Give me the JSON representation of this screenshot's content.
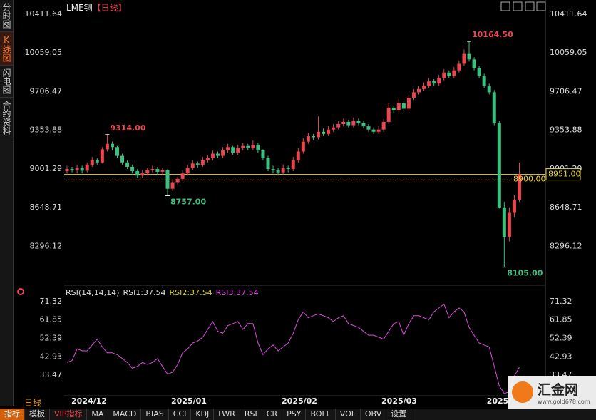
{
  "header": {
    "title": "LME铜",
    "period": "【日线】"
  },
  "sidebar": [
    "分时图",
    "K线图",
    "闪电图",
    "合约资料"
  ],
  "chart_data": [
    {
      "type": "candlestick",
      "ohlc": [
        [
          8980,
          9030,
          8960,
          9000
        ],
        [
          9000,
          9020,
          8970,
          8990
        ],
        [
          8990,
          9040,
          8960,
          9010
        ],
        [
          9010,
          9030,
          8960,
          8985
        ],
        [
          8985,
          9060,
          8970,
          9040
        ],
        [
          9040,
          9110,
          9020,
          9080
        ],
        [
          9080,
          9100,
          9040,
          9060
        ],
        [
          9060,
          9200,
          9050,
          9180
        ],
        [
          9180,
          9314,
          9160,
          9230
        ],
        [
          9230,
          9250,
          9170,
          9200
        ],
        [
          9200,
          9210,
          9100,
          9120
        ],
        [
          9120,
          9140,
          9040,
          9060
        ],
        [
          9060,
          9080,
          9000,
          9020
        ],
        [
          9020,
          9040,
          8960,
          8980
        ],
        [
          8980,
          9000,
          8920,
          8940
        ],
        [
          8940,
          8990,
          8920,
          8960
        ],
        [
          8960,
          9010,
          8940,
          8990
        ],
        [
          8990,
          9030,
          8970,
          9000
        ],
        [
          9000,
          9020,
          8950,
          8975
        ],
        [
          8975,
          9010,
          8950,
          8990
        ],
        [
          8990,
          9000,
          8757,
          8820
        ],
        [
          8820,
          8900,
          8800,
          8880
        ],
        [
          8880,
          8930,
          8860,
          8910
        ],
        [
          8910,
          8990,
          8890,
          8960
        ],
        [
          8960,
          9040,
          8940,
          9010
        ],
        [
          9010,
          9080,
          8990,
          9050
        ],
        [
          9050,
          9070,
          9010,
          9040
        ],
        [
          9040,
          9110,
          9020,
          9080
        ],
        [
          9080,
          9130,
          9060,
          9100
        ],
        [
          9100,
          9170,
          9080,
          9140
        ],
        [
          9140,
          9160,
          9100,
          9120
        ],
        [
          9120,
          9200,
          9100,
          9170
        ],
        [
          9170,
          9230,
          9150,
          9200
        ],
        [
          9200,
          9210,
          9130,
          9150
        ],
        [
          9150,
          9220,
          9130,
          9190
        ],
        [
          9190,
          9240,
          9170,
          9210
        ],
        [
          9210,
          9230,
          9170,
          9190
        ],
        [
          9190,
          9260,
          9170,
          9220
        ],
        [
          9220,
          9240,
          9150,
          9170
        ],
        [
          9170,
          9180,
          9080,
          9100
        ],
        [
          9100,
          9120,
          8980,
          9000
        ],
        [
          9000,
          9030,
          8960,
          8990
        ],
        [
          8990,
          9010,
          8940,
          8970
        ],
        [
          8970,
          9040,
          8950,
          9010
        ],
        [
          9010,
          9030,
          8970,
          9000
        ],
        [
          9000,
          9110,
          8980,
          9080
        ],
        [
          9080,
          9190,
          9060,
          9160
        ],
        [
          9160,
          9280,
          9140,
          9250
        ],
        [
          9250,
          9330,
          9230,
          9300
        ],
        [
          9300,
          9320,
          9260,
          9290
        ],
        [
          9290,
          9480,
          9270,
          9340
        ],
        [
          9340,
          9370,
          9300,
          9320
        ],
        [
          9320,
          9390,
          9300,
          9360
        ],
        [
          9360,
          9410,
          9340,
          9380
        ],
        [
          9380,
          9440,
          9360,
          9410
        ],
        [
          9410,
          9460,
          9390,
          9430
        ],
        [
          9430,
          9450,
          9380,
          9400
        ],
        [
          9400,
          9470,
          9380,
          9440
        ],
        [
          9440,
          9460,
          9400,
          9420
        ],
        [
          9420,
          9440,
          9370,
          9390
        ],
        [
          9390,
          9410,
          9340,
          9360
        ],
        [
          9360,
          9380,
          9320,
          9340
        ],
        [
          9340,
          9390,
          9320,
          9360
        ],
        [
          9360,
          9460,
          9340,
          9430
        ],
        [
          9430,
          9600,
          9410,
          9560
        ],
        [
          9560,
          9580,
          9510,
          9540
        ],
        [
          9540,
          9640,
          9520,
          9600
        ],
        [
          9600,
          9620,
          9530,
          9550
        ],
        [
          9550,
          9680,
          9530,
          9650
        ],
        [
          9650,
          9730,
          9630,
          9700
        ],
        [
          9700,
          9760,
          9680,
          9730
        ],
        [
          9730,
          9790,
          9710,
          9760
        ],
        [
          9760,
          9830,
          9740,
          9800
        ],
        [
          9800,
          9820,
          9760,
          9780
        ],
        [
          9780,
          9860,
          9760,
          9830
        ],
        [
          9830,
          9910,
          9810,
          9880
        ],
        [
          9880,
          9900,
          9830,
          9850
        ],
        [
          9850,
          9930,
          9830,
          9900
        ],
        [
          9900,
          9990,
          9880,
          9960
        ],
        [
          9960,
          10090,
          9940,
          10050
        ],
        [
          10050,
          10164.5,
          9980,
          10000
        ],
        [
          10000,
          10020,
          9900,
          9920
        ],
        [
          9920,
          9940,
          9830,
          9850
        ],
        [
          9850,
          9870,
          9740,
          9760
        ],
        [
          9760,
          9780,
          9680,
          9700
        ],
        [
          9700,
          9720,
          9400,
          9420
        ],
        [
          9420,
          9440,
          8640,
          8650
        ],
        [
          8650,
          8700,
          8105,
          8380
        ],
        [
          8380,
          8650,
          8340,
          8600
        ],
        [
          8600,
          8760,
          8560,
          8720
        ],
        [
          8720,
          9060,
          8700,
          8951
        ]
      ],
      "up_color": "#e8474f",
      "down_color": "#3dbf80",
      "ylim": [
        7940,
        10490
      ],
      "yticks": [
        10411.64,
        10059.05,
        9706.47,
        9353.88,
        9001.29,
        8648.71,
        8296.12
      ],
      "extreme_labels": [
        {
          "value": 9314,
          "label": "9314.00"
        },
        {
          "value": 8757,
          "label": "8757.00"
        },
        {
          "value": 10164.5,
          "label": "10164.50"
        },
        {
          "value": 8105,
          "label": "8105.00"
        }
      ],
      "reference_line": {
        "value": 8900,
        "label": "8900.00",
        "color": "#e8a030"
      },
      "last_price": {
        "value": 8951,
        "label": "8951.00",
        "color": "#e8d53a"
      },
      "x_labels": [
        "2024/12",
        "2025/01",
        "2025/02",
        "2025/03",
        "2025/"
      ],
      "period_label": "日线"
    },
    {
      "type": "line",
      "legend": [
        "RSI(14,14,14)",
        "RSI1:37.54",
        "RSI2:37.54",
        "RSI3:37.54"
      ],
      "legend_colors": [
        "#dddddd",
        "#dddddd",
        "#d8d030",
        "#d94fd9"
      ],
      "values": [
        40,
        41,
        47,
        46,
        46,
        49,
        52,
        48,
        45,
        45,
        44,
        42,
        40,
        37,
        38,
        40,
        39,
        40,
        42,
        38,
        34,
        35,
        39,
        45,
        47,
        50,
        51,
        53,
        57,
        61,
        56,
        55,
        59,
        60,
        61,
        57,
        60,
        60,
        50,
        44,
        47,
        49,
        46,
        48,
        50,
        55,
        62,
        66,
        63,
        64,
        65,
        64,
        63,
        61,
        63,
        64,
        60,
        59,
        58,
        56,
        54,
        54,
        53,
        52,
        56,
        60,
        61,
        54,
        60,
        64,
        64,
        63,
        62,
        66,
        68,
        70,
        63,
        66,
        68,
        66,
        58,
        54,
        50,
        49,
        48,
        38,
        28,
        24,
        25,
        33,
        37.54
      ],
      "color": "#d94fd9",
      "ylim": [
        22.9,
        74.2
      ],
      "yticks": [
        71.32,
        61.85,
        52.39,
        42.93,
        33.47
      ]
    }
  ],
  "toolbar": [
    "指标",
    "模板",
    "VIP指标",
    "MA",
    "MACD",
    "BIAS",
    "CCI",
    "KDJ",
    "LWR",
    "RSI",
    "CR",
    "PSY",
    "BOLL",
    "VOL",
    "OBV",
    "设置"
  ],
  "logo": {
    "name": "汇金网",
    "url": "www.gold678.com"
  }
}
